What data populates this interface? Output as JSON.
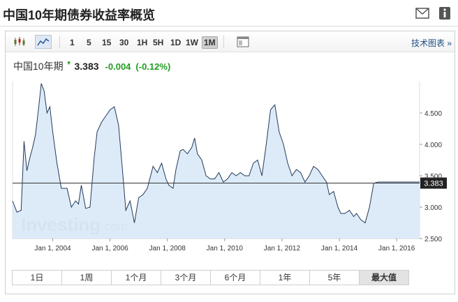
{
  "header": {
    "title": "中国10年期债券收益率概览"
  },
  "toolbar": {
    "timeframes": [
      "1",
      "5",
      "15",
      "30",
      "1H",
      "5H",
      "1D",
      "1W",
      "1M"
    ],
    "active_timeframe": "1M",
    "tech_chart_link": "技术图表 »"
  },
  "quote": {
    "name": "中国10年期",
    "price": "3.383",
    "change": "-0.004",
    "change_pct": "(-0.12%)",
    "up_color": "#219b21"
  },
  "chart_data": {
    "type": "area",
    "x_tick_labels": [
      "Jan 1, 2004",
      "Jan 1, 2006",
      "Jan 1, 2008",
      "Jan 1, 2010",
      "Jan 1, 2012",
      "Jan 1, 2014",
      "Jan 1, 2016"
    ],
    "y_tick_labels": [
      "2.500",
      "3.000",
      "3.500",
      "4.000",
      "4.500"
    ],
    "ylim": [
      2.5,
      5.0
    ],
    "current_value": 3.383,
    "current_value_label": "3.383",
    "x_unit": "year",
    "x": [
      2002.6,
      2002.75,
      2002.9,
      2003.0,
      2003.1,
      2003.2,
      2003.3,
      2003.4,
      2003.5,
      2003.6,
      2003.7,
      2003.8,
      2003.9,
      2004.0,
      2004.15,
      2004.3,
      2004.5,
      2004.65,
      2004.8,
      2004.9,
      2005.0,
      2005.15,
      2005.3,
      2005.45,
      2005.55,
      2005.7,
      2005.85,
      2006.0,
      2006.15,
      2006.3,
      2006.45,
      2006.55,
      2006.7,
      2006.85,
      2007.0,
      2007.15,
      2007.3,
      2007.5,
      2007.65,
      2007.8,
      2007.95,
      2008.05,
      2008.2,
      2008.3,
      2008.45,
      2008.55,
      2008.7,
      2008.85,
      2008.95,
      2009.05,
      2009.2,
      2009.35,
      2009.5,
      2009.65,
      2009.8,
      2009.95,
      2010.1,
      2010.25,
      2010.4,
      2010.55,
      2010.7,
      2010.85,
      2011.0,
      2011.15,
      2011.3,
      2011.45,
      2011.6,
      2011.75,
      2011.9,
      2012.05,
      2012.2,
      2012.35,
      2012.5,
      2012.65,
      2012.8,
      2012.95,
      2013.1,
      2013.25,
      2013.4,
      2013.55,
      2013.65,
      2013.8,
      2013.95,
      2014.05,
      2014.2,
      2014.35,
      2014.5,
      2014.6,
      2014.75,
      2014.9,
      2015.05,
      2015.2,
      2015.35,
      2015.5,
      2015.65,
      2015.8,
      2015.95,
      2016.1,
      2016.25,
      2016.4,
      2016.55,
      2016.7,
      2016.8
    ],
    "values": [
      3.1,
      2.92,
      2.95,
      4.05,
      3.58,
      3.78,
      3.95,
      4.15,
      4.55,
      4.97,
      4.85,
      4.5,
      4.6,
      4.2,
      3.7,
      3.3,
      3.3,
      3.0,
      3.1,
      3.05,
      3.35,
      2.98,
      3.0,
      3.8,
      4.2,
      4.35,
      4.45,
      4.55,
      4.6,
      4.3,
      3.5,
      2.95,
      3.1,
      2.75,
      3.15,
      3.2,
      3.3,
      3.65,
      3.55,
      3.7,
      3.45,
      3.35,
      3.3,
      3.6,
      3.9,
      3.92,
      3.85,
      3.95,
      4.1,
      3.85,
      3.75,
      3.5,
      3.45,
      3.45,
      3.55,
      3.4,
      3.45,
      3.55,
      3.5,
      3.55,
      3.5,
      3.5,
      3.7,
      3.75,
      3.5,
      4.0,
      4.55,
      4.63,
      4.2,
      4.0,
      3.7,
      3.5,
      3.6,
      3.55,
      3.4,
      3.5,
      3.65,
      3.6,
      3.5,
      3.4,
      3.2,
      3.25,
      3.0,
      2.9,
      2.9,
      2.95,
      2.85,
      2.9,
      2.8,
      2.75,
      3.0,
      3.38,
      3.4,
      3.4,
      3.4,
      3.4,
      3.4,
      3.4,
      3.4,
      3.4,
      3.4,
      3.4,
      3.4
    ],
    "grid": false,
    "watermark": "Investing.com",
    "line_color": "#243a5a",
    "fill_color": "#d7e7f8"
  },
  "range_buttons": [
    "1日",
    "1周",
    "1个月",
    "3个月",
    "6个月",
    "1年",
    "5年",
    "最大值"
  ],
  "active_range": "最大值"
}
